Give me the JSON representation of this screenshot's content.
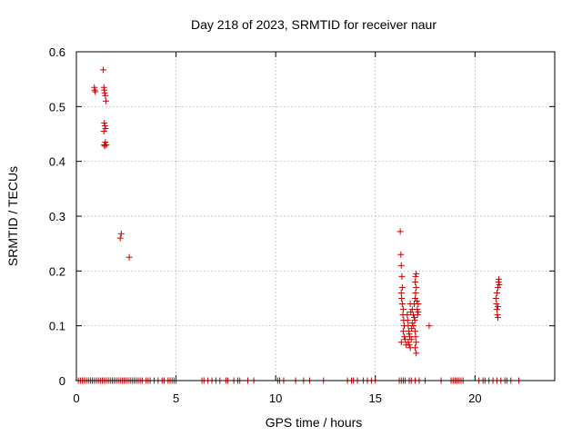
{
  "chart_data": {
    "type": "scatter",
    "title": "Day 218 of 2023, SRMTID for receiver naur",
    "xlabel": "GPS time / hours",
    "ylabel": "SRMTID / TECUs",
    "xlim": [
      0,
      24
    ],
    "ylim": [
      0,
      0.6
    ],
    "xticks": [
      0,
      5,
      10,
      15,
      20
    ],
    "yticks": [
      0,
      0.1,
      0.2,
      0.3,
      0.4,
      0.5,
      0.6
    ],
    "xtick_labels": [
      "0",
      "5",
      "10",
      "15",
      "20"
    ],
    "ytick_labels": [
      "0",
      "0.1",
      "0.2",
      "0.3",
      "0.4",
      "0.5",
      "0.6"
    ],
    "grid": true,
    "marker": "+",
    "color": "#cc0000",
    "series": [
      {
        "name": "SRMTID",
        "points": [
          [
            0.9,
            0.535
          ],
          [
            0.92,
            0.53
          ],
          [
            0.95,
            0.527
          ],
          [
            1.35,
            0.567
          ],
          [
            1.38,
            0.535
          ],
          [
            1.4,
            0.53
          ],
          [
            1.42,
            0.525
          ],
          [
            1.45,
            0.52
          ],
          [
            1.48,
            0.51
          ],
          [
            1.4,
            0.47
          ],
          [
            1.43,
            0.465
          ],
          [
            1.46,
            0.46
          ],
          [
            1.38,
            0.455
          ],
          [
            1.45,
            0.435
          ],
          [
            1.4,
            0.43
          ],
          [
            1.42,
            0.428
          ],
          [
            1.5,
            0.43
          ],
          [
            2.25,
            0.268
          ],
          [
            2.2,
            0.26
          ],
          [
            2.65,
            0.225
          ],
          [
            16.25,
            0.272
          ],
          [
            16.28,
            0.23
          ],
          [
            16.3,
            0.21
          ],
          [
            16.33,
            0.19
          ],
          [
            16.35,
            0.17
          ],
          [
            16.3,
            0.16
          ],
          [
            16.32,
            0.15
          ],
          [
            16.35,
            0.14
          ],
          [
            16.4,
            0.13
          ],
          [
            16.38,
            0.12
          ],
          [
            16.42,
            0.11
          ],
          [
            16.45,
            0.1
          ],
          [
            16.4,
            0.09
          ],
          [
            16.45,
            0.08
          ],
          [
            16.3,
            0.07
          ],
          [
            16.5,
            0.075
          ],
          [
            16.55,
            0.065
          ],
          [
            16.6,
            0.12
          ],
          [
            16.62,
            0.11
          ],
          [
            16.65,
            0.1
          ],
          [
            16.68,
            0.09
          ],
          [
            16.7,
            0.085
          ],
          [
            16.72,
            0.08
          ],
          [
            16.65,
            0.07
          ],
          [
            16.7,
            0.065
          ],
          [
            16.75,
            0.06
          ],
          [
            16.8,
            0.075
          ],
          [
            16.82,
            0.095
          ],
          [
            16.85,
            0.105
          ],
          [
            16.78,
            0.125
          ],
          [
            16.75,
            0.14
          ],
          [
            16.85,
            0.13
          ],
          [
            16.9,
            0.12
          ],
          [
            16.95,
            0.115
          ],
          [
            16.98,
            0.11
          ],
          [
            16.92,
            0.1
          ],
          [
            17.0,
            0.09
          ],
          [
            17.02,
            0.08
          ],
          [
            17.05,
            0.07
          ],
          [
            17.0,
            0.06
          ],
          [
            17.05,
            0.05
          ],
          [
            16.95,
            0.14
          ],
          [
            17.0,
            0.15
          ],
          [
            17.02,
            0.16
          ],
          [
            17.05,
            0.17
          ],
          [
            17.0,
            0.18
          ],
          [
            17.02,
            0.19
          ],
          [
            17.05,
            0.195
          ],
          [
            17.1,
            0.13
          ],
          [
            17.12,
            0.12
          ],
          [
            17.15,
            0.125
          ],
          [
            17.08,
            0.145
          ],
          [
            17.15,
            0.14
          ],
          [
            17.7,
            0.1
          ],
          [
            21.05,
            0.15
          ],
          [
            21.08,
            0.14
          ],
          [
            21.1,
            0.13
          ],
          [
            21.12,
            0.12
          ],
          [
            21.15,
            0.115
          ],
          [
            21.1,
            0.16
          ],
          [
            21.15,
            0.17
          ],
          [
            21.18,
            0.18
          ],
          [
            21.2,
            0.185
          ],
          [
            21.22,
            0.175
          ],
          [
            21.15,
            0.135
          ],
          [
            0.1,
            0
          ],
          [
            0.2,
            0
          ],
          [
            0.3,
            0
          ],
          [
            0.4,
            0
          ],
          [
            0.5,
            0
          ],
          [
            0.6,
            0
          ],
          [
            0.7,
            0
          ],
          [
            0.8,
            0
          ],
          [
            0.9,
            0
          ],
          [
            1.0,
            0
          ],
          [
            1.1,
            0
          ],
          [
            1.2,
            0
          ],
          [
            1.3,
            0
          ],
          [
            1.4,
            0
          ],
          [
            1.5,
            0
          ],
          [
            1.6,
            0
          ],
          [
            1.7,
            0
          ],
          [
            1.8,
            0
          ],
          [
            1.9,
            0
          ],
          [
            2.0,
            0
          ],
          [
            2.1,
            0
          ],
          [
            2.2,
            0
          ],
          [
            2.3,
            0
          ],
          [
            2.4,
            0
          ],
          [
            2.5,
            0
          ],
          [
            2.6,
            0
          ],
          [
            2.7,
            0
          ],
          [
            2.8,
            0
          ],
          [
            2.9,
            0
          ],
          [
            3.0,
            0
          ],
          [
            3.1,
            0
          ],
          [
            3.2,
            0
          ],
          [
            3.3,
            0
          ],
          [
            3.5,
            0
          ],
          [
            3.6,
            0
          ],
          [
            3.7,
            0
          ],
          [
            3.9,
            0
          ],
          [
            4.1,
            0
          ],
          [
            4.3,
            0
          ],
          [
            4.4,
            0
          ],
          [
            4.6,
            0
          ],
          [
            4.7,
            0
          ],
          [
            4.8,
            0
          ],
          [
            4.9,
            0
          ],
          [
            5.0,
            0
          ],
          [
            6.3,
            0
          ],
          [
            6.4,
            0
          ],
          [
            6.6,
            0
          ],
          [
            6.8,
            0
          ],
          [
            7.0,
            0
          ],
          [
            7.2,
            0
          ],
          [
            7.5,
            0
          ],
          [
            7.6,
            0
          ],
          [
            7.9,
            0
          ],
          [
            8.1,
            0
          ],
          [
            8.2,
            0
          ],
          [
            8.6,
            0
          ],
          [
            8.9,
            0
          ],
          [
            10.1,
            0
          ],
          [
            10.2,
            0
          ],
          [
            10.4,
            0
          ],
          [
            11.0,
            0
          ],
          [
            11.4,
            0
          ],
          [
            11.7,
            0
          ],
          [
            12.4,
            0
          ],
          [
            13.6,
            0
          ],
          [
            13.8,
            0
          ],
          [
            13.9,
            0
          ],
          [
            14.1,
            0
          ],
          [
            14.4,
            0
          ],
          [
            14.6,
            0
          ],
          [
            14.8,
            0
          ],
          [
            15.0,
            0
          ],
          [
            16.2,
            0
          ],
          [
            16.3,
            0
          ],
          [
            16.4,
            0
          ],
          [
            16.5,
            0
          ],
          [
            16.7,
            0
          ],
          [
            16.8,
            0
          ],
          [
            17.0,
            0
          ],
          [
            17.2,
            0
          ],
          [
            17.5,
            0
          ],
          [
            18.3,
            0
          ],
          [
            18.8,
            0
          ],
          [
            18.9,
            0
          ],
          [
            19.0,
            0
          ],
          [
            19.1,
            0
          ],
          [
            19.2,
            0
          ],
          [
            19.3,
            0
          ],
          [
            19.4,
            0
          ],
          [
            20.2,
            0
          ],
          [
            20.4,
            0
          ],
          [
            20.5,
            0
          ],
          [
            20.7,
            0
          ],
          [
            20.9,
            0
          ],
          [
            21.1,
            0
          ],
          [
            21.3,
            0
          ],
          [
            21.5,
            0
          ],
          [
            21.6,
            0
          ],
          [
            21.8,
            0
          ],
          [
            22.2,
            0
          ]
        ]
      }
    ]
  }
}
